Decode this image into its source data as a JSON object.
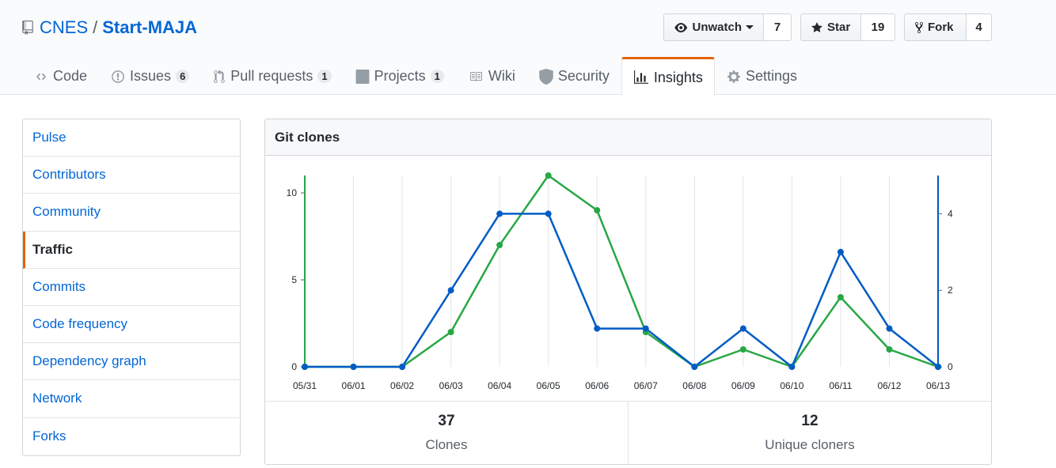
{
  "repo": {
    "owner": "CNES",
    "separator": "/",
    "name": "Start-MAJA"
  },
  "actions": {
    "watch": {
      "label": "Unwatch",
      "count": "7"
    },
    "star": {
      "label": "Star",
      "count": "19"
    },
    "fork": {
      "label": "Fork",
      "count": "4"
    }
  },
  "tabs": [
    {
      "label": "Code",
      "icon": "code-icon"
    },
    {
      "label": "Issues",
      "count": "6",
      "icon": "issue-icon"
    },
    {
      "label": "Pull requests",
      "count": "1",
      "icon": "pull-request-icon"
    },
    {
      "label": "Projects",
      "count": "1",
      "icon": "project-icon"
    },
    {
      "label": "Wiki",
      "icon": "book-icon"
    },
    {
      "label": "Security",
      "icon": "shield-icon"
    },
    {
      "label": "Insights",
      "icon": "graph-icon",
      "selected": true
    },
    {
      "label": "Settings",
      "icon": "gear-icon"
    }
  ],
  "sidebar": {
    "items": [
      {
        "label": "Pulse"
      },
      {
        "label": "Contributors"
      },
      {
        "label": "Community"
      },
      {
        "label": "Traffic",
        "active": true
      },
      {
        "label": "Commits"
      },
      {
        "label": "Code frequency"
      },
      {
        "label": "Dependency graph"
      },
      {
        "label": "Network"
      },
      {
        "label": "Forks"
      }
    ]
  },
  "panel": {
    "title": "Git clones"
  },
  "stats": {
    "clones": {
      "value": "37",
      "label": "Clones"
    },
    "unique": {
      "value": "12",
      "label": "Unique cloners"
    }
  },
  "colors": {
    "clones": "#28a745",
    "unique": "#005cc5",
    "accent": "#e36209",
    "link": "#0366d6"
  },
  "chart_data": {
    "type": "line",
    "x": [
      "05/31",
      "06/01",
      "06/02",
      "06/03",
      "06/04",
      "06/05",
      "06/06",
      "06/07",
      "06/08",
      "06/09",
      "06/10",
      "06/11",
      "06/12",
      "06/13"
    ],
    "series": [
      {
        "axis": "left",
        "values": [
          0,
          0,
          0,
          2,
          7,
          11,
          9,
          2,
          0,
          1,
          0,
          4,
          1,
          0
        ]
      },
      {
        "axis": "right",
        "values": [
          0,
          0,
          0,
          2,
          4,
          4,
          1,
          1,
          0,
          1,
          0,
          3,
          1,
          0
        ]
      }
    ],
    "y_left": {
      "ticks": [
        0,
        5,
        10
      ],
      "range": [
        0,
        11
      ]
    },
    "y_right": {
      "ticks": [
        0,
        2,
        4
      ],
      "range": [
        0,
        5
      ]
    },
    "grid": "vertical"
  }
}
